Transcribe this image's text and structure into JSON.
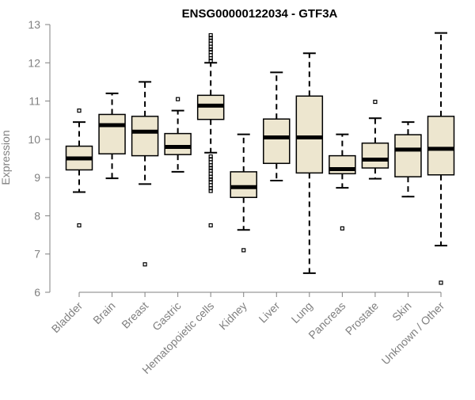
{
  "chart_data": {
    "type": "boxplot",
    "title": "ENSG00000122034 - GTF3A",
    "xlabel": "",
    "ylabel": "Expression",
    "ylim": [
      6,
      13
    ],
    "yticks": [
      6,
      7,
      8,
      9,
      10,
      11,
      12,
      13
    ],
    "grid": false,
    "legend": "none",
    "box_fill": "#ede6cf",
    "box_stroke": "#000000",
    "median_color": "#000000",
    "axis_color": "#808080",
    "categories": [
      {
        "name": "Bladder",
        "whisker_low": 8.62,
        "q1": 9.2,
        "median": 9.5,
        "q3": 9.82,
        "whisker_high": 10.45,
        "outliers": [
          7.75,
          10.75
        ]
      },
      {
        "name": "Brain",
        "whisker_low": 8.98,
        "q1": 9.62,
        "median": 10.37,
        "q3": 10.65,
        "whisker_high": 11.2,
        "outliers": []
      },
      {
        "name": "Breast",
        "whisker_low": 8.83,
        "q1": 9.57,
        "median": 10.2,
        "q3": 10.6,
        "whisker_high": 11.5,
        "outliers": [
          6.73
        ]
      },
      {
        "name": "Gastric",
        "whisker_low": 9.15,
        "q1": 9.6,
        "median": 9.8,
        "q3": 10.15,
        "whisker_high": 10.75,
        "outliers": [
          11.05
        ]
      },
      {
        "name": "Hematopoietic cells",
        "whisker_low": 9.65,
        "q1": 10.52,
        "median": 10.88,
        "q3": 11.15,
        "whisker_high": 12.0,
        "outliers": [
          7.75,
          8.65,
          8.72,
          8.8,
          8.88,
          8.95,
          9.02,
          9.1,
          9.18,
          9.25,
          9.32,
          9.4,
          9.48,
          9.55,
          12.05,
          12.12,
          12.2,
          12.28,
          12.35,
          12.42,
          12.5,
          12.58,
          12.65,
          12.72
        ]
      },
      {
        "name": "Kidney",
        "whisker_low": 7.63,
        "q1": 8.48,
        "median": 8.75,
        "q3": 9.15,
        "whisker_high": 10.13,
        "outliers": [
          7.1
        ]
      },
      {
        "name": "Liver",
        "whisker_low": 8.92,
        "q1": 9.37,
        "median": 10.05,
        "q3": 10.53,
        "whisker_high": 11.75,
        "outliers": []
      },
      {
        "name": "Lung",
        "whisker_low": 6.5,
        "q1": 9.12,
        "median": 10.05,
        "q3": 11.13,
        "whisker_high": 12.25,
        "outliers": []
      },
      {
        "name": "Pancreas",
        "whisker_low": 8.73,
        "q1": 9.1,
        "median": 9.22,
        "q3": 9.57,
        "whisker_high": 10.13,
        "outliers": [
          7.67
        ]
      },
      {
        "name": "Prostate",
        "whisker_low": 8.97,
        "q1": 9.25,
        "median": 9.47,
        "q3": 9.9,
        "whisker_high": 10.55,
        "outliers": [
          10.98
        ]
      },
      {
        "name": "Skin",
        "whisker_low": 8.5,
        "q1": 9.02,
        "median": 9.73,
        "q3": 10.12,
        "whisker_high": 10.45,
        "outliers": []
      },
      {
        "name": "Unknown / Other",
        "whisker_low": 7.22,
        "q1": 9.07,
        "median": 9.75,
        "q3": 10.6,
        "whisker_high": 12.78,
        "outliers": [
          6.25
        ]
      }
    ]
  }
}
